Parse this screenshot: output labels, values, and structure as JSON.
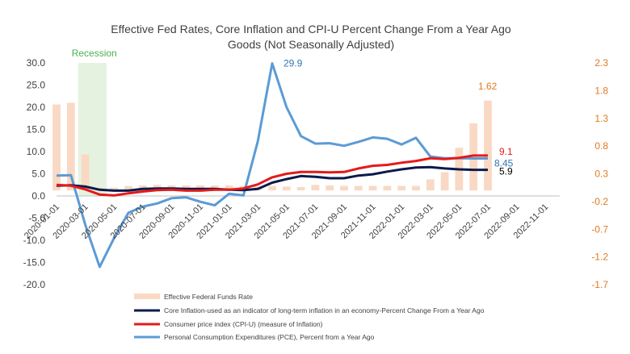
{
  "chart_data": {
    "type": "bar+line",
    "title_line1": "Effective Fed Rates, Core Inflation and CPI-U Percent Change From a Year Ago",
    "title_line2": "Goods (Not Seasonally Adjusted)",
    "x_labels": [
      "2020-01-01",
      "2020-03-01",
      "2020-05-01",
      "2020-07-01",
      "2020-09-01",
      "2020-11-01",
      "2021-01-01",
      "2021-03-01",
      "2021-05-01",
      "2021-07-01",
      "2021-09-01",
      "2021-11-01",
      "2022-01-01",
      "2022-03-01",
      "2022-05-01",
      "2022-07-01",
      "2022-09-01",
      "2022-11-01"
    ],
    "x_start_month": "2020-01",
    "x_end_month": "2022-12",
    "y_left": {
      "min": -20,
      "max": 30,
      "ticks": [
        "-20.0",
        "-15.0",
        "-10.0",
        "-5.0",
        "0.0",
        "5.0",
        "10.0",
        "15.0",
        "20.0",
        "25.0",
        "30.0"
      ]
    },
    "y_right": {
      "min": -1.7,
      "max": 2.3,
      "ticks": [
        "-1.7",
        "-1.2",
        "-0.7",
        "-0.2",
        "0.3",
        "0.8",
        "1.3",
        "1.8",
        "2.3"
      ]
    },
    "recession": {
      "label": "Recession",
      "start_month": "2020-03",
      "end_month": "2020-04",
      "color": "#e6f2e0",
      "label_color": "#4caf50"
    },
    "series": [
      {
        "name": "Effective Federal Funds Rate",
        "type": "bar",
        "axis": "right",
        "color": "#f9d9c4",
        "values": [
          1.55,
          1.58,
          0.65,
          0.05,
          0.05,
          0.08,
          0.09,
          0.1,
          0.09,
          0.09,
          0.09,
          0.09,
          0.09,
          0.08,
          0.07,
          0.08,
          0.07,
          0.06,
          0.1,
          0.09,
          0.08,
          0.08,
          0.08,
          0.08,
          0.08,
          0.08,
          0.2,
          0.33,
          0.77,
          1.21,
          1.62
        ]
      },
      {
        "name": "Core Inflation-used as an indicator of long-term inflation in an economy-Percent Change From a Year Ago",
        "type": "line",
        "axis": "left",
        "color": "#0b1a4a",
        "values": [
          2.3,
          2.4,
          2.1,
          1.4,
          1.2,
          1.2,
          1.6,
          1.7,
          1.7,
          1.6,
          1.6,
          1.6,
          1.4,
          1.3,
          1.6,
          3.0,
          3.8,
          4.5,
          4.3,
          4.0,
          4.0,
          4.6,
          4.9,
          5.5,
          6.0,
          6.4,
          6.5,
          6.2,
          6.0,
          5.9,
          5.9
        ],
        "end_label": "5.9",
        "end_label_color": "#000000"
      },
      {
        "name": "Consumer price index (CPI-U) (measure of Inflation)",
        "type": "line",
        "axis": "left",
        "color": "#e41a1a",
        "values": [
          2.5,
          2.3,
          1.5,
          0.3,
          0.1,
          0.6,
          1.0,
          1.3,
          1.4,
          1.2,
          1.2,
          1.4,
          1.4,
          1.7,
          2.6,
          4.2,
          5.0,
          5.4,
          5.4,
          5.3,
          5.4,
          6.2,
          6.8,
          7.0,
          7.5,
          7.9,
          8.5,
          8.3,
          8.6,
          9.1,
          9.1
        ],
        "end_label": "9.1",
        "end_label_color": "#e41a1a"
      },
      {
        "name": "Personal Consumption Expenditures (PCE), Percent from a Year Ago",
        "type": "line",
        "axis": "left",
        "color": "#5b9bd5",
        "values": [
          4.6,
          4.7,
          -6.5,
          -16.0,
          -9.5,
          -3.8,
          -2.4,
          -1.7,
          -0.5,
          -0.3,
          -1.3,
          -2.1,
          0.5,
          0.1,
          12.3,
          29.9,
          20.0,
          13.5,
          11.8,
          11.9,
          11.3,
          12.2,
          13.2,
          12.9,
          11.6,
          13.1,
          8.9,
          8.5,
          8.5,
          8.45,
          8.45
        ],
        "peak_label": "29.9",
        "end_label": "8.45",
        "label_color": "#2e75b6"
      }
    ],
    "legend_position": "bottom",
    "grid": false
  }
}
